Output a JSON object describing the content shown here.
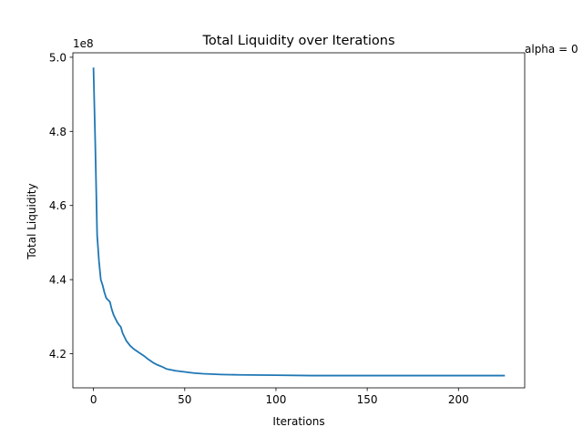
{
  "chart_data": {
    "type": "line",
    "title": "Total Liquidity over Iterations",
    "xlabel": "Iterations",
    "ylabel": "Total Liquidity",
    "y_offset_label": "1e8",
    "annotation": "alpha = 0",
    "xlim": [
      -11.3,
      236.3
    ],
    "ylim": [
      4.108,
      5.012
    ],
    "grid": false,
    "x_ticks": [
      {
        "value": 0,
        "label": "0"
      },
      {
        "value": 50,
        "label": "50"
      },
      {
        "value": 100,
        "label": "100"
      },
      {
        "value": 150,
        "label": "150"
      },
      {
        "value": 200,
        "label": "200"
      }
    ],
    "y_ticks": [
      {
        "value": 4.2,
        "label": "4.2"
      },
      {
        "value": 4.4,
        "label": "4.4"
      },
      {
        "value": 4.6,
        "label": "4.6"
      },
      {
        "value": 4.8,
        "label": "4.8"
      },
      {
        "value": 5.0,
        "label": "5.0"
      }
    ],
    "series": [
      {
        "color": "#1f77b4",
        "x": [
          0,
          1,
          2,
          3,
          4,
          5,
          6,
          7,
          8,
          9,
          10,
          11,
          12,
          13,
          14,
          15,
          16,
          17,
          18,
          20,
          22,
          25,
          28,
          30,
          33,
          35,
          38,
          40,
          45,
          50,
          55,
          60,
          70,
          80,
          100,
          120,
          150,
          200,
          225
        ],
        "y": [
          4.97,
          4.76,
          4.52,
          4.45,
          4.4,
          4.385,
          4.365,
          4.35,
          4.345,
          4.34,
          4.32,
          4.305,
          4.295,
          4.285,
          4.278,
          4.272,
          4.255,
          4.245,
          4.235,
          4.222,
          4.213,
          4.203,
          4.193,
          4.185,
          4.175,
          4.17,
          4.164,
          4.159,
          4.154,
          4.151,
          4.148,
          4.146,
          4.144,
          4.143,
          4.142,
          4.141,
          4.141,
          4.141,
          4.141
        ]
      }
    ]
  }
}
